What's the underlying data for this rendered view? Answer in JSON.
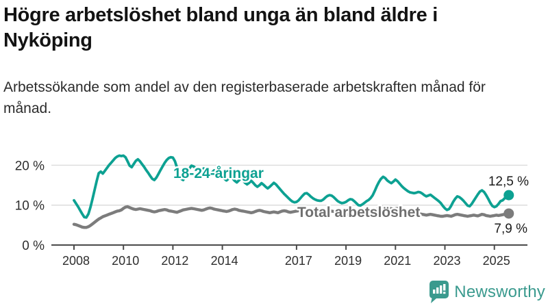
{
  "header": {
    "title": "Högre arbetslöshet bland unga än bland äldre i Nyköping",
    "subtitle": "Arbetssökande som andel av den registerbaserade arbetskraften månad för månad."
  },
  "chart_data": {
    "type": "line",
    "title": "Högre arbetslöshet bland unga än bland äldre i Nyköping",
    "x_unit": "month",
    "x_start_year": 2008,
    "x_end": "2025-08",
    "x_tick_years": [
      2008,
      2010,
      2012,
      2014,
      2017,
      2019,
      2021,
      2023,
      2025
    ],
    "x_tick_labels": [
      "2008",
      "2010",
      "2012",
      "2014",
      "2017",
      "2019",
      "2021",
      "2023",
      "2025"
    ],
    "y_tick_values": [
      0,
      10,
      20
    ],
    "y_tick_labels": [
      "0 %",
      "10 %",
      "20 %"
    ],
    "ylim": [
      0,
      24
    ],
    "grid": "horizontal",
    "legend_position": "inline-labels",
    "series": [
      {
        "name": "18-24-åringar",
        "color": "#0da192",
        "end_label": "12,5 %",
        "end_value": 12.5,
        "values": [
          11.2,
          10.4,
          9.6,
          8.7,
          7.8,
          7.0,
          6.9,
          7.8,
          9.5,
          11.6,
          13.8,
          16.0,
          18.0,
          18.4,
          17.9,
          18.6,
          19.3,
          20.0,
          20.6,
          21.2,
          21.8,
          22.2,
          22.4,
          22.3,
          22.4,
          22.0,
          21.0,
          19.9,
          19.5,
          20.3,
          21.1,
          21.5,
          21.0,
          20.3,
          19.6,
          18.8,
          18.1,
          17.3,
          16.6,
          16.3,
          16.9,
          17.8,
          18.8,
          19.7,
          20.6,
          21.3,
          21.8,
          22.0,
          21.9,
          21.0,
          19.4,
          17.7,
          16.6,
          16.3,
          17.2,
          18.3,
          19.2,
          19.9,
          19.7,
          19.3,
          18.9,
          18.5,
          18.8,
          19.2,
          18.8,
          18.3,
          17.8,
          18.2,
          18.7,
          18.3,
          17.8,
          17.4,
          17.0,
          16.6,
          16.2,
          16.6,
          17.1,
          16.7,
          16.1,
          15.7,
          16.2,
          16.7,
          16.2,
          15.6,
          15.2,
          15.6,
          16.1,
          15.6,
          15.0,
          14.6,
          15.0,
          15.5,
          15.1,
          14.6,
          14.2,
          14.6,
          15.1,
          15.6,
          15.2,
          14.6,
          14.0,
          13.4,
          12.8,
          12.3,
          11.8,
          11.3,
          10.9,
          10.7,
          10.8,
          11.2,
          11.8,
          12.4,
          12.9,
          13.0,
          12.6,
          12.1,
          11.7,
          11.4,
          11.2,
          11.1,
          11.1,
          11.4,
          11.9,
          12.3,
          12.5,
          12.4,
          12.0,
          11.5,
          11.0,
          10.7,
          10.5,
          10.6,
          10.8,
          11.2,
          11.5,
          11.4,
          11.0,
          10.5,
          10.0,
          9.9,
          10.2,
          10.6,
          11.0,
          11.3,
          11.8,
          12.5,
          13.6,
          14.8,
          15.8,
          16.6,
          17.1,
          16.8,
          16.2,
          15.8,
          15.5,
          15.9,
          16.4,
          16.0,
          15.4,
          14.8,
          14.3,
          13.9,
          13.5,
          13.2,
          13.1,
          13.0,
          13.1,
          13.3,
          13.2,
          12.9,
          12.5,
          12.2,
          12.4,
          12.6,
          12.2,
          11.8,
          11.4,
          11.0,
          10.5,
          9.8,
          9.2,
          8.8,
          9.0,
          9.8,
          10.8,
          11.6,
          12.2,
          12.0,
          11.6,
          11.1,
          10.5,
          9.9,
          9.7,
          10.3,
          11.1,
          11.9,
          12.7,
          13.4,
          13.7,
          13.3,
          12.5,
          11.6,
          10.6,
          9.8,
          9.5,
          9.7,
          10.3,
          11.0,
          11.2,
          11.7,
          12.2,
          12.5
        ]
      },
      {
        "name": "Total arbetslöshet",
        "color": "#7c7c7c",
        "end_label": "7,9 %",
        "end_value": 7.9,
        "values": [
          5.2,
          5.1,
          4.9,
          4.7,
          4.5,
          4.4,
          4.4,
          4.6,
          4.9,
          5.3,
          5.7,
          6.1,
          6.5,
          6.8,
          7.1,
          7.3,
          7.5,
          7.7,
          7.9,
          8.1,
          8.3,
          8.5,
          8.6,
          8.8,
          9.2,
          9.5,
          9.6,
          9.4,
          9.2,
          9.0,
          8.9,
          9.0,
          9.1,
          9.0,
          8.9,
          8.8,
          8.7,
          8.6,
          8.4,
          8.3,
          8.4,
          8.6,
          8.7,
          8.8,
          8.9,
          8.8,
          8.6,
          8.5,
          8.4,
          8.3,
          8.2,
          8.4,
          8.6,
          8.8,
          8.9,
          9.0,
          9.1,
          9.2,
          9.1,
          9.0,
          8.9,
          8.8,
          8.7,
          8.8,
          9.0,
          9.2,
          9.3,
          9.2,
          9.0,
          8.9,
          8.8,
          8.7,
          8.6,
          8.5,
          8.4,
          8.5,
          8.7,
          8.9,
          9.0,
          8.9,
          8.7,
          8.6,
          8.5,
          8.4,
          8.3,
          8.2,
          8.1,
          8.2,
          8.4,
          8.6,
          8.7,
          8.6,
          8.4,
          8.3,
          8.2,
          8.1,
          8.2,
          8.3,
          8.2,
          8.1,
          8.3,
          8.5,
          8.6,
          8.5,
          8.3,
          8.2,
          8.3,
          8.4,
          8.5,
          8.6,
          8.7,
          8.6,
          8.5,
          8.7,
          8.9,
          8.8,
          8.6,
          8.5,
          8.4,
          8.3,
          8.2,
          8.1,
          8.0,
          8.1,
          8.3,
          8.5,
          8.4,
          8.3,
          8.1,
          8.0,
          7.9,
          7.8,
          7.7,
          7.6,
          7.5,
          7.6,
          7.8,
          8.0,
          8.1,
          8.0,
          7.8,
          7.7,
          7.8,
          7.9,
          8.1,
          8.3,
          8.6,
          8.9,
          9.2,
          9.4,
          9.5,
          9.4,
          9.3,
          9.2,
          9.1,
          9.0,
          9.1,
          9.2,
          9.0,
          8.8,
          8.6,
          8.5,
          8.4,
          8.3,
          8.2,
          8.1,
          8.0,
          7.9,
          7.8,
          7.7,
          7.6,
          7.5,
          7.6,
          7.7,
          7.6,
          7.5,
          7.4,
          7.3,
          7.2,
          7.2,
          7.3,
          7.4,
          7.3,
          7.2,
          7.4,
          7.6,
          7.7,
          7.6,
          7.5,
          7.4,
          7.3,
          7.2,
          7.3,
          7.4,
          7.5,
          7.4,
          7.3,
          7.5,
          7.7,
          7.6,
          7.4,
          7.3,
          7.2,
          7.3,
          7.4,
          7.5,
          7.4,
          7.5,
          7.6,
          7.7,
          7.8,
          7.9
        ]
      }
    ],
    "colors": {
      "grid": "#d9d9d9",
      "axis": "#4a4a4a",
      "tick_label": "#2e2e2e",
      "value_label": "#1a1a1a",
      "series_label_total": "#6f6f6f"
    }
  },
  "footer": {
    "brand": "Newsworthy",
    "brand_color": "#3a9a8e",
    "logo_icon": "newsworthy-chart-bubble-icon"
  }
}
